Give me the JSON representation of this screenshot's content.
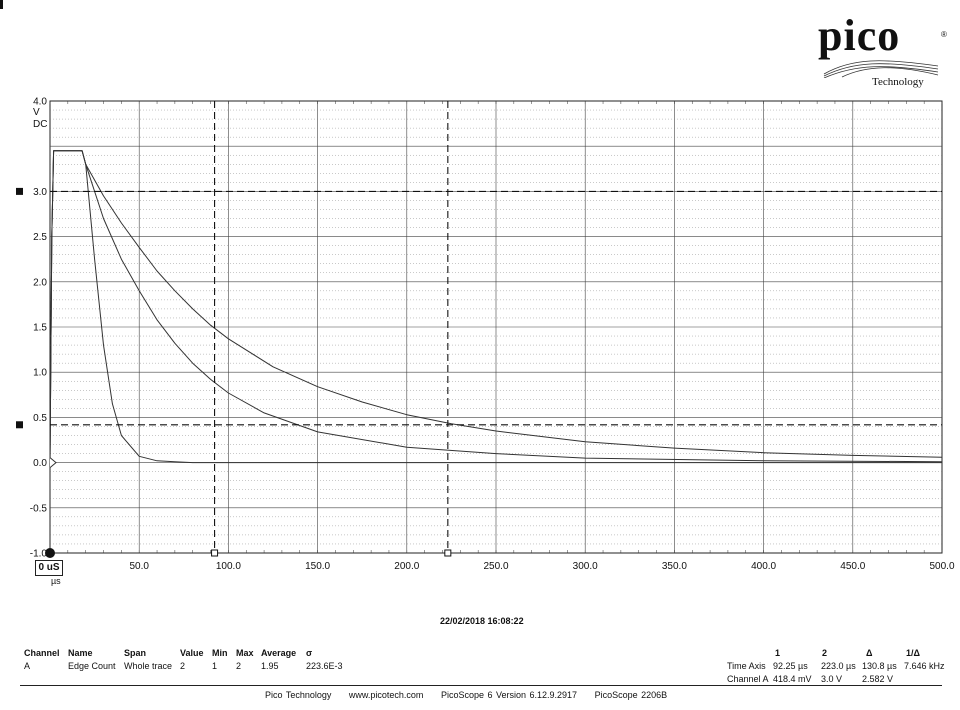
{
  "logo": {
    "name": "pico",
    "sub": "Technology"
  },
  "timestamp": "22/02/2018 16:08:22",
  "origin": {
    "value": "0 uS",
    "unit": "µs"
  },
  "chart_data": {
    "type": "line",
    "title": "",
    "ylabel": "V",
    "ylabel_coupling": "DC",
    "xlabel": "µs",
    "xlim": [
      0,
      500
    ],
    "ylim": [
      -1.0,
      4.0
    ],
    "x_ticks": [
      "50.0",
      "100.0",
      "150.0",
      "200.0",
      "250.0",
      "300.0",
      "350.0",
      "400.0",
      "450.0",
      "500.0"
    ],
    "y_ticks": [
      "4.0",
      "3.0",
      "2.5",
      "2.0",
      "1.5",
      "1.0",
      "0.5",
      "0.0",
      "-0.5",
      "-1.0"
    ],
    "grid": true,
    "series": [
      {
        "x": [
          0,
          1,
          2,
          5,
          10,
          15,
          18,
          20,
          25,
          30,
          35,
          40,
          50,
          60,
          70,
          80,
          100,
          150,
          250,
          400,
          500
        ],
        "values": [
          0.0,
          2.5,
          3.45,
          3.45,
          3.45,
          3.45,
          3.45,
          3.3,
          2.25,
          1.3,
          0.65,
          0.3,
          0.07,
          0.02,
          0.01,
          0.0,
          0.0,
          0.0,
          0.0,
          0.0,
          0.0
        ]
      },
      {
        "x": [
          0,
          1,
          2,
          5,
          10,
          15,
          18,
          20,
          30,
          40,
          50,
          60,
          70,
          80,
          90,
          100,
          120,
          150,
          200,
          250,
          300,
          400,
          500
        ],
        "values": [
          0.0,
          2.5,
          3.45,
          3.45,
          3.45,
          3.45,
          3.45,
          3.3,
          2.7,
          2.25,
          1.9,
          1.58,
          1.32,
          1.1,
          0.92,
          0.77,
          0.55,
          0.34,
          0.17,
          0.1,
          0.05,
          0.02,
          0.01
        ]
      },
      {
        "x": [
          0,
          1,
          2,
          5,
          10,
          15,
          18,
          20,
          30,
          40,
          50,
          60,
          70,
          80,
          90,
          100,
          125,
          150,
          175,
          200,
          225,
          250,
          300,
          350,
          400,
          450,
          500
        ],
        "values": [
          0.0,
          2.5,
          3.45,
          3.45,
          3.45,
          3.45,
          3.45,
          3.3,
          2.95,
          2.65,
          2.38,
          2.12,
          1.9,
          1.7,
          1.52,
          1.37,
          1.06,
          0.84,
          0.67,
          0.53,
          0.43,
          0.35,
          0.23,
          0.16,
          0.11,
          0.08,
          0.06
        ]
      }
    ],
    "cursors": {
      "time": [
        92.25,
        223.0
      ],
      "voltage": [
        3.0,
        0.4184
      ]
    }
  },
  "measurements": {
    "headers": [
      "Channel",
      "Name",
      "Span",
      "Value",
      "Min",
      "Max",
      "Average",
      "σ"
    ],
    "rows": [
      [
        "A",
        "Edge Count",
        "Whole trace",
        "2",
        "1",
        "2",
        "1.95",
        "223.6E-3"
      ]
    ]
  },
  "rulers": {
    "headers": [
      "1",
      "2",
      "Δ",
      "1/Δ"
    ],
    "rows": [
      {
        "label": "Time Axis",
        "v1": "92.25 µs",
        "v2": "223.0 µs",
        "delta": "130.8 µs",
        "inv": "7.646 kHz"
      },
      {
        "label": "Channel A",
        "v1": "418.4 mV",
        "v2": "3.0 V",
        "delta": "2.582 V",
        "inv": ""
      }
    ]
  },
  "footer": [
    "Pico Technology",
    "www.picotech.com",
    "PicoScope 6 Version 6.12.9.2917",
    "PicoScope 2206B"
  ]
}
